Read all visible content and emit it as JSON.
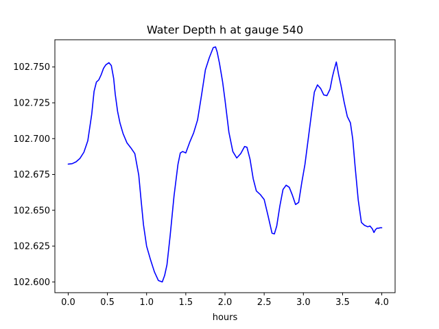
{
  "chart_data": {
    "type": "line",
    "title": "Water Depth h at gauge 540",
    "xlabel": "hours",
    "ylabel": "",
    "xlim": [
      -0.17,
      4.17
    ],
    "ylim": [
      102.5925,
      102.769
    ],
    "xticks": [
      0.0,
      0.5,
      1.0,
      1.5,
      2.0,
      2.5,
      3.0,
      3.5,
      4.0
    ],
    "xtick_labels": [
      "0.0",
      "0.5",
      "1.0",
      "1.5",
      "2.0",
      "2.5",
      "3.0",
      "3.5",
      "4.0"
    ],
    "yticks": [
      102.6,
      102.625,
      102.65,
      102.675,
      102.7,
      102.725,
      102.75
    ],
    "ytick_labels": [
      "102.600",
      "102.625",
      "102.650",
      "102.675",
      "102.700",
      "102.725",
      "102.750"
    ],
    "grid": false,
    "series": [
      {
        "name": "",
        "color": "#0000ff",
        "x": [
          0.0,
          0.05,
          0.1,
          0.15,
          0.2,
          0.25,
          0.3,
          0.33,
          0.36,
          0.39,
          0.42,
          0.45,
          0.48,
          0.52,
          0.55,
          0.58,
          0.6,
          0.63,
          0.66,
          0.7,
          0.75,
          0.8,
          0.85,
          0.9,
          0.93,
          0.96,
          1.0,
          1.05,
          1.1,
          1.15,
          1.2,
          1.23,
          1.26,
          1.3,
          1.35,
          1.4,
          1.43,
          1.46,
          1.5,
          1.55,
          1.6,
          1.65,
          1.7,
          1.75,
          1.8,
          1.85,
          1.88,
          1.9,
          1.93,
          1.97,
          2.0,
          2.05,
          2.1,
          2.15,
          2.2,
          2.25,
          2.28,
          2.32,
          2.36,
          2.4,
          2.45,
          2.5,
          2.55,
          2.6,
          2.63,
          2.66,
          2.7,
          2.74,
          2.78,
          2.82,
          2.86,
          2.9,
          2.94,
          2.98,
          3.02,
          3.06,
          3.1,
          3.14,
          3.18,
          3.22,
          3.26,
          3.3,
          3.34,
          3.37,
          3.39,
          3.42,
          3.45,
          3.48,
          3.52,
          3.56,
          3.6,
          3.63,
          3.66,
          3.7,
          3.74,
          3.78,
          3.82,
          3.85,
          3.88,
          3.9,
          3.92,
          3.94,
          3.96,
          3.98,
          4.0
        ],
        "y": [
          102.6822,
          102.6825,
          102.6838,
          102.6862,
          102.6905,
          102.6985,
          102.717,
          102.733,
          102.7395,
          102.741,
          102.7445,
          102.749,
          102.7515,
          102.753,
          102.751,
          102.742,
          102.731,
          102.719,
          102.711,
          102.7035,
          102.697,
          102.6935,
          102.6895,
          102.6745,
          102.657,
          102.64,
          102.625,
          102.6155,
          102.607,
          102.601,
          102.6,
          102.6045,
          102.612,
          102.632,
          102.66,
          102.682,
          102.69,
          102.691,
          102.69,
          102.6975,
          102.704,
          102.713,
          102.73,
          102.748,
          102.7565,
          102.7635,
          102.764,
          102.7605,
          102.7525,
          102.7395,
          102.727,
          102.7045,
          102.691,
          102.6865,
          102.6895,
          102.6945,
          102.694,
          102.6855,
          102.672,
          102.6635,
          102.661,
          102.6575,
          102.646,
          102.634,
          102.6335,
          102.639,
          102.653,
          102.6645,
          102.6675,
          102.666,
          102.6605,
          102.654,
          102.6555,
          102.6695,
          102.682,
          102.699,
          102.716,
          102.7325,
          102.7375,
          102.735,
          102.7305,
          102.73,
          102.7345,
          102.743,
          102.7475,
          102.7535,
          102.7445,
          102.737,
          102.7255,
          102.7155,
          102.711,
          102.6995,
          102.6805,
          102.657,
          102.6415,
          102.6395,
          102.6385,
          102.639,
          102.637,
          102.6345,
          102.6365,
          102.6375,
          102.6375,
          102.6378,
          102.6378
        ]
      }
    ]
  }
}
